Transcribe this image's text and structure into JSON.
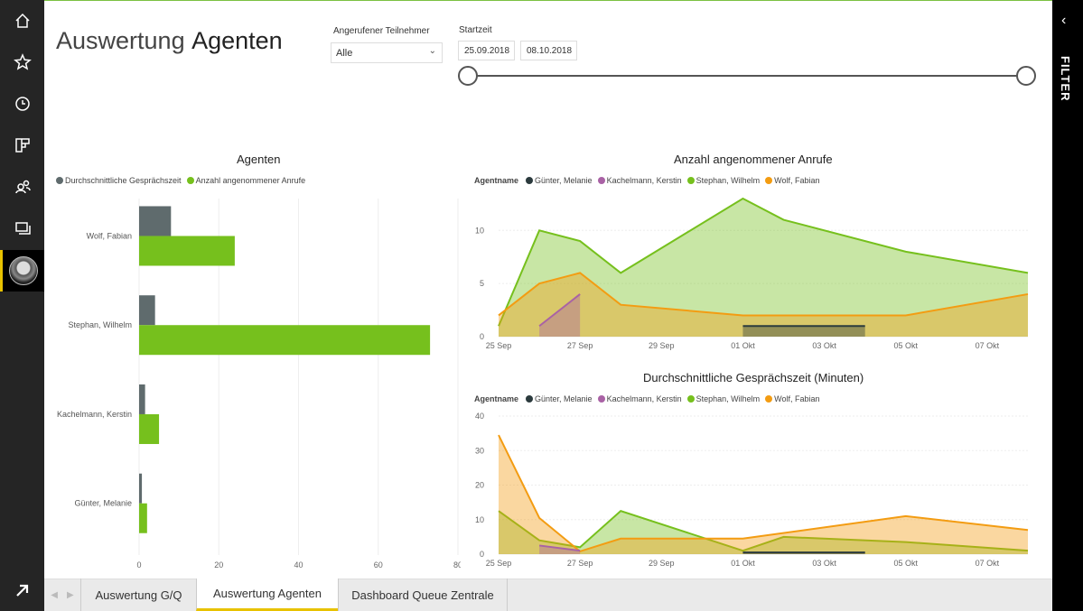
{
  "nav": {
    "items": [
      {
        "name": "home-icon"
      },
      {
        "name": "star-icon"
      },
      {
        "name": "clock-icon"
      },
      {
        "name": "workspaces-icon"
      },
      {
        "name": "shared-icon"
      },
      {
        "name": "apps-icon"
      }
    ],
    "expand_icon": "arrow-up-right-icon"
  },
  "filter_panel": {
    "label": "FILTER"
  },
  "header": {
    "title_light": "Auswertung",
    "title_bold": "Agenten"
  },
  "slicers": {
    "participant": {
      "label": "Angerufener Teilnehmer",
      "value": "Alle"
    },
    "start": {
      "label": "Startzeit",
      "from": "25.09.2018",
      "to": "08.10.2018"
    }
  },
  "chart_data": [
    {
      "type": "bar",
      "title": "Agenten",
      "categories": [
        "Wolf, Fabian",
        "Stephan, Wilhelm",
        "Kachelmann, Kerstin",
        "Günter, Melanie"
      ],
      "series": [
        {
          "name": "Durchschnittliche Gesprächszeit",
          "color": "#5f6b6d",
          "values": [
            8,
            4,
            1.5,
            0.7
          ]
        },
        {
          "name": "Anzahl angenommener Anrufe",
          "color": "#76c01d",
          "values": [
            24,
            73,
            5,
            2
          ]
        }
      ],
      "xlim": [
        0,
        80
      ],
      "xticks": [
        "0",
        "20",
        "40",
        "60",
        "80"
      ]
    },
    {
      "type": "area",
      "title": "Anzahl angenommener Anrufe",
      "legend_title": "Agentname",
      "x": [
        "25 Sep",
        "26 Sep",
        "27 Sep",
        "28 Sep",
        "29 Sep",
        "30 Sep",
        "01 Okt",
        "02 Okt",
        "03 Okt",
        "04 Okt",
        "05 Okt",
        "06 Okt",
        "07 Okt",
        "08 Okt"
      ],
      "xticks": [
        "25 Sep",
        "27 Sep",
        "29 Sep",
        "01 Okt",
        "03 Okt",
        "05 Okt",
        "07 Okt"
      ],
      "ylim": [
        0,
        13
      ],
      "yticks": [
        "0",
        "5",
        "10"
      ],
      "series": [
        {
          "name": "Günter, Melanie",
          "color": "#2b3a3d",
          "values": [
            null,
            null,
            null,
            null,
            null,
            null,
            1,
            1,
            1,
            1,
            null,
            null,
            null,
            null
          ]
        },
        {
          "name": "Kachelmann, Kerstin",
          "color": "#a962a5",
          "values": [
            null,
            1,
            4,
            null,
            null,
            null,
            null,
            null,
            null,
            null,
            null,
            null,
            null,
            null
          ]
        },
        {
          "name": "Stephan, Wilhelm",
          "color": "#76c01d",
          "values": [
            1,
            10,
            9,
            6,
            null,
            null,
            13,
            11,
            null,
            null,
            8,
            null,
            null,
            6
          ]
        },
        {
          "name": "Wolf, Fabian",
          "color": "#f39c12",
          "values": [
            2,
            5,
            6,
            3,
            null,
            null,
            2,
            null,
            null,
            null,
            2,
            null,
            null,
            4
          ]
        }
      ]
    },
    {
      "type": "area",
      "title": "Durchschnittliche Gesprächszeit (Minuten)",
      "legend_title": "Agentname",
      "x": [
        "25 Sep",
        "26 Sep",
        "27 Sep",
        "28 Sep",
        "29 Sep",
        "30 Sep",
        "01 Okt",
        "02 Okt",
        "03 Okt",
        "04 Okt",
        "05 Okt",
        "06 Okt",
        "07 Okt",
        "08 Okt"
      ],
      "xticks": [
        "25 Sep",
        "27 Sep",
        "29 Sep",
        "01 Okt",
        "03 Okt",
        "05 Okt",
        "07 Okt"
      ],
      "ylim": [
        0,
        40
      ],
      "yticks": [
        "0",
        "10",
        "20",
        "30",
        "40"
      ],
      "series": [
        {
          "name": "Günter, Melanie",
          "color": "#2b3a3d",
          "values": [
            null,
            null,
            null,
            null,
            null,
            null,
            0.5,
            0.5,
            0.5,
            0.5,
            null,
            null,
            null,
            null
          ]
        },
        {
          "name": "Kachelmann, Kerstin",
          "color": "#a962a5",
          "values": [
            null,
            2.5,
            1,
            null,
            null,
            null,
            null,
            null,
            null,
            null,
            null,
            null,
            null,
            null
          ]
        },
        {
          "name": "Stephan, Wilhelm",
          "color": "#76c01d",
          "values": [
            12.5,
            4,
            2,
            12.5,
            null,
            null,
            1,
            5,
            null,
            null,
            3.5,
            null,
            null,
            1
          ]
        },
        {
          "name": "Wolf, Fabian",
          "color": "#f39c12",
          "values": [
            34.5,
            10.5,
            0.8,
            4.5,
            4.5,
            null,
            4.5,
            null,
            null,
            null,
            11,
            null,
            null,
            7
          ]
        }
      ]
    }
  ],
  "tabs": [
    {
      "label": "Auswertung G/Q",
      "active": false
    },
    {
      "label": "Auswertung Agenten",
      "active": true
    },
    {
      "label": "Dashboard Queue Zentrale",
      "active": false
    }
  ]
}
